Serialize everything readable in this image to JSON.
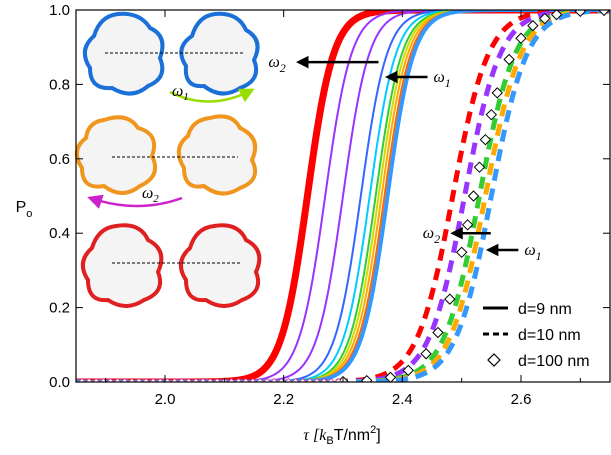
{
  "chart_data": {
    "type": "line",
    "xlabel": "τ [k",
    "xlabel_sub": "B",
    "xlabel_rest": "T/nm",
    "xlabel_sup": "2",
    "xlabel_end": "]",
    "ylabel": "P",
    "ylabel_sub": "o",
    "xlim": [
      1.85,
      2.75
    ],
    "ylim": [
      0.0,
      1.0
    ],
    "xticks": [
      "2.0",
      "2.2",
      "2.4",
      "2.6"
    ],
    "xtick_values": [
      2.0,
      2.2,
      2.4,
      2.6
    ],
    "yticks": [
      "0.0",
      "0.2",
      "0.4",
      "0.6",
      "0.8",
      "1.0"
    ],
    "ytick_values": [
      0.0,
      0.2,
      0.4,
      0.6,
      0.8,
      1.0
    ],
    "curve_model": "logistic P = 1/(1+exp(-(x - x50)/width))",
    "series_solid_d9": [
      {
        "color": "#ff0000",
        "x50": 2.24,
        "width": 0.022,
        "stroke": 7
      },
      {
        "color": "#9933ff",
        "x50": 2.27,
        "width": 0.022,
        "stroke": 2
      },
      {
        "color": "#9933ff",
        "x50": 2.3,
        "width": 0.022,
        "stroke": 2
      },
      {
        "color": "#3366ff",
        "x50": 2.33,
        "width": 0.022,
        "stroke": 2
      },
      {
        "color": "#00ccff",
        "x50": 2.345,
        "width": 0.022,
        "stroke": 2
      },
      {
        "color": "#33cc33",
        "x50": 2.355,
        "width": 0.022,
        "stroke": 2
      },
      {
        "color": "#ccdd00",
        "x50": 2.36,
        "width": 0.022,
        "stroke": 2
      },
      {
        "color": "#ffaa00",
        "x50": 2.365,
        "width": 0.022,
        "stroke": 2
      },
      {
        "color": "#ff6600",
        "x50": 2.37,
        "width": 0.022,
        "stroke": 2
      },
      {
        "color": "#3399ff",
        "x50": 2.375,
        "width": 0.022,
        "stroke": 4
      }
    ],
    "series_dashed_d10": [
      {
        "color": "#ff0000",
        "x50": 2.485,
        "width": 0.03
      },
      {
        "color": "#9933ff",
        "x50": 2.505,
        "width": 0.03
      },
      {
        "color": "#33cc33",
        "x50": 2.53,
        "width": 0.03
      },
      {
        "color": "#ffaa00",
        "x50": 2.54,
        "width": 0.03
      },
      {
        "color": "#3399ff",
        "x50": 2.55,
        "width": 0.03
      }
    ],
    "diamond_d100": {
      "x50": 2.52,
      "width": 0.032,
      "x": [
        2.3,
        2.34,
        2.38,
        2.41,
        2.44,
        2.46,
        2.48,
        2.5,
        2.51,
        2.52,
        2.53,
        2.54,
        2.55,
        2.56,
        2.58,
        2.6,
        2.62,
        2.64,
        2.66,
        2.7,
        2.74
      ]
    },
    "legend": [
      {
        "label": "d=9 nm",
        "style": "solid"
      },
      {
        "label": "d=10 nm",
        "style": "dashed"
      },
      {
        "label": "d=100 nm",
        "style": "diamond"
      }
    ],
    "legend_position": "bottom-right",
    "annotations": [
      {
        "text": "ω",
        "sub": "2",
        "at": "solid-left",
        "target_x": 2.24,
        "y": 0.86
      },
      {
        "text": "ω",
        "sub": "1",
        "at": "solid-right",
        "target_x": 2.375,
        "y": 0.82
      },
      {
        "text": "ω",
        "sub": "2",
        "at": "dashed-left",
        "target_x": 2.485,
        "y": 0.41
      },
      {
        "text": "ω",
        "sub": "1",
        "at": "dashed-right",
        "target_x": 2.55,
        "y": 0.37
      }
    ],
    "inset_annotations": [
      {
        "text": "ω",
        "sub": "1"
      },
      {
        "text": "ω",
        "sub": "2"
      }
    ],
    "inset_ring_colors": [
      "#1a6fd9",
      "#f0961e",
      "#e02020"
    ],
    "grid": false
  }
}
